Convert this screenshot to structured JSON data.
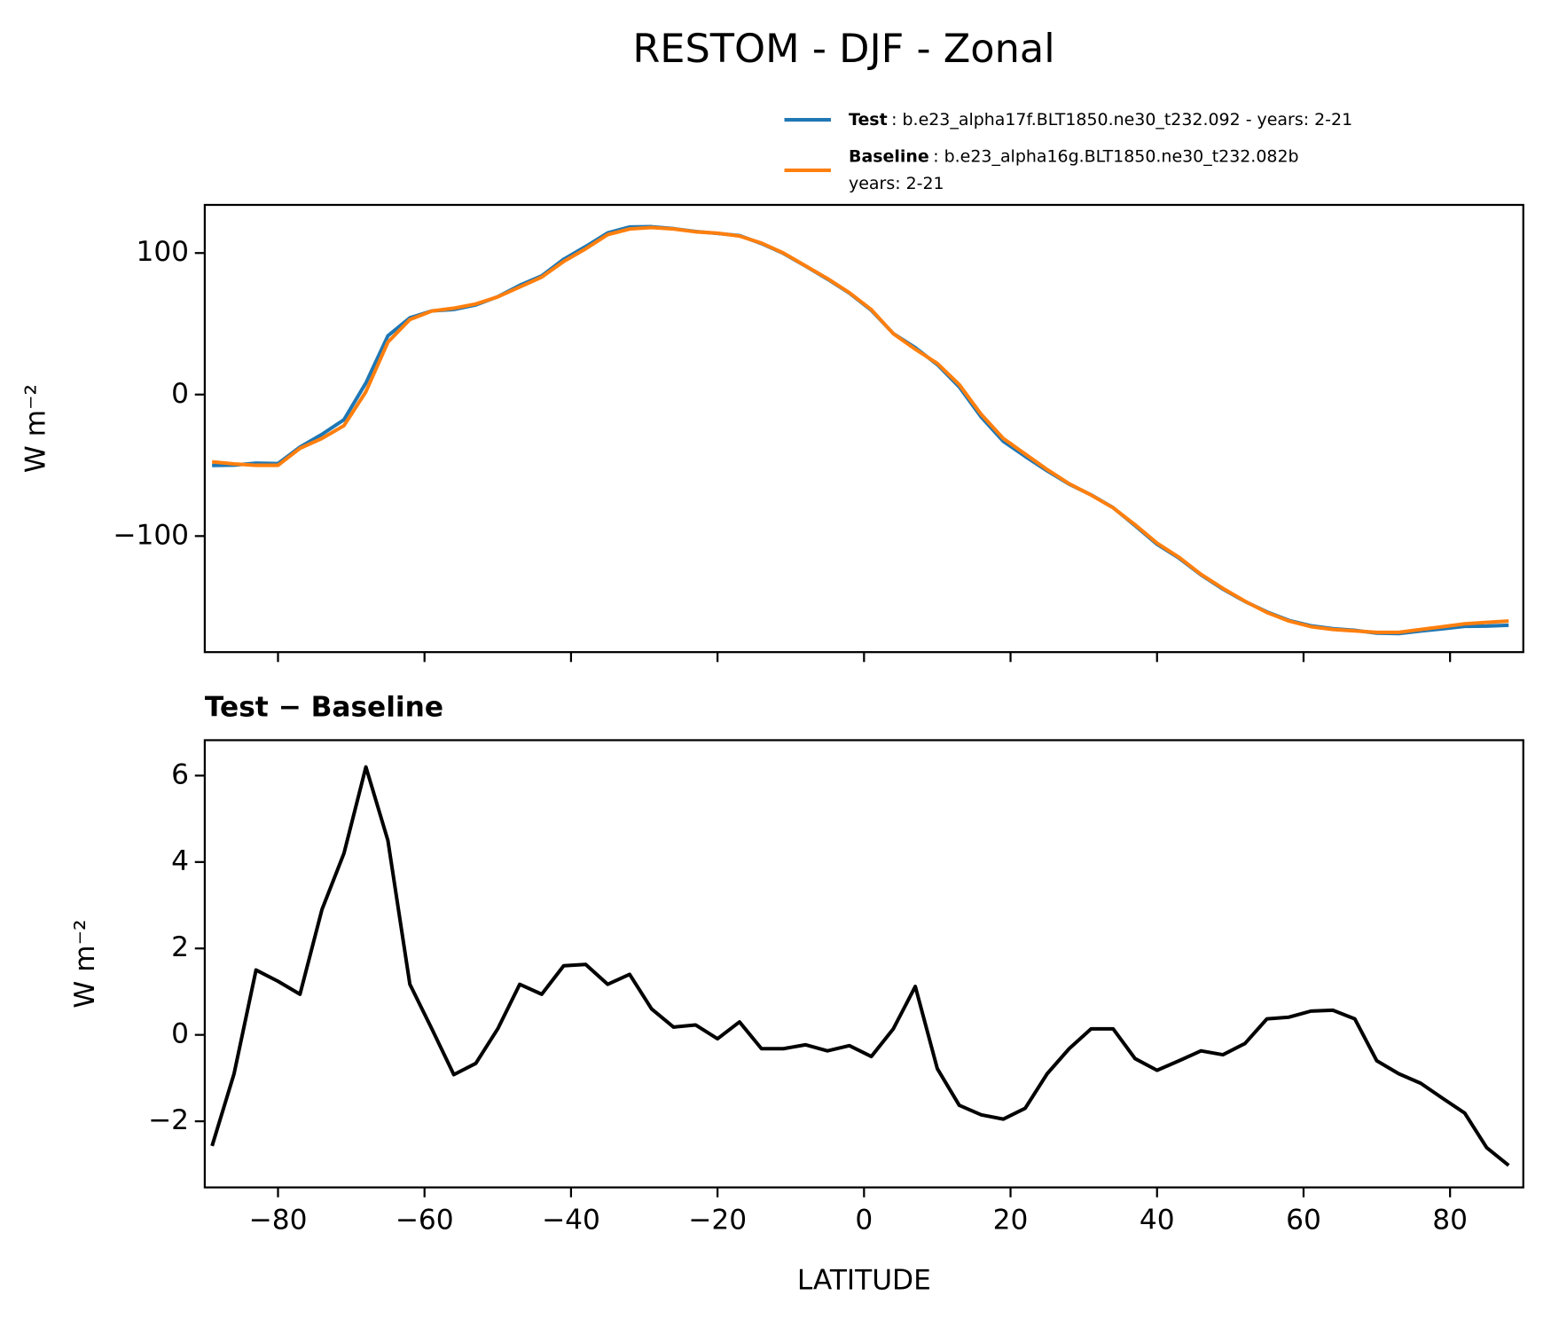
{
  "chart_data": [
    {
      "type": "line",
      "title": "RESTOM - DJF - Zonal",
      "ylabel": "W m⁻²",
      "x": [
        -89,
        -86,
        -83,
        -80,
        -77,
        -74,
        -71,
        -68,
        -65,
        -62,
        -59,
        -56,
        -53,
        -50,
        -47,
        -44,
        -41,
        -38,
        -35,
        -32,
        -29,
        -26,
        -23,
        -20,
        -17,
        -14,
        -11,
        -8,
        -5,
        -2,
        1,
        4,
        7,
        10,
        13,
        16,
        19,
        22,
        25,
        28,
        31,
        34,
        37,
        40,
        43,
        46,
        49,
        52,
        55,
        58,
        61,
        64,
        67,
        70,
        73,
        76,
        79,
        82,
        85,
        88
      ],
      "series": [
        {
          "name": "Test",
          "label": [
            ": b.e23_alpha17f.BLT1850.ne30_t232.092 - years: 2-21"
          ],
          "color": "#1f77b4",
          "values": [
            -50.1,
            -49.9,
            -48.5,
            -48.8,
            -37.1,
            -28.1,
            -17.8,
            8.2,
            41.5,
            54.2,
            59.1,
            60.1,
            63.3,
            69.1,
            77.2,
            83.9,
            95.6,
            104.6,
            114.2,
            118.4,
            118.6,
            117.2,
            115.2,
            113.9,
            112.3,
            106.7,
            99.7,
            90.8,
            81.6,
            71.7,
            59.5,
            43.1,
            33.1,
            21.2,
            5.4,
            -15.9,
            -33,
            -43.7,
            -53.9,
            -63.3,
            -70.9,
            -79.9,
            -92.6,
            -105.8,
            -115.6,
            -127.4,
            -137.5,
            -146.2,
            -153.6,
            -159.6,
            -163.4,
            -165.4,
            -166.6,
            -168.6,
            -168.9,
            -167.1,
            -165.5,
            -163.8,
            -163.6,
            -163
          ]
        },
        {
          "name": "Baseline",
          "label": [
            ": b.e23_alpha16g.BLT1850.ne30_t232.082b",
            "years: 2-21"
          ],
          "color": "#ff7f0e",
          "values": [
            -47.5,
            -49,
            -50,
            -50,
            -38,
            -31,
            -22,
            2,
            37,
            53,
            59,
            61,
            64,
            69,
            76,
            83,
            94,
            103,
            113,
            117,
            118,
            117,
            115,
            114,
            112,
            107,
            100,
            91,
            82,
            72,
            60,
            43,
            32,
            22,
            7,
            -14,
            -31,
            -42,
            -53,
            -63,
            -71,
            -80,
            -92,
            -105,
            -115,
            -127,
            -137,
            -146,
            -154,
            -160,
            -164,
            -166,
            -167,
            -168,
            -168,
            -166,
            -164,
            -162,
            -161,
            -160
          ]
        }
      ],
      "xlim": [
        -90,
        90
      ],
      "xticks": [
        -80,
        -60,
        -40,
        -20,
        0,
        20,
        40,
        60,
        80
      ],
      "show_xticklabels": false,
      "ylim": [
        -182,
        134
      ],
      "yticks": [
        {
          "value": -100,
          "label": "−100"
        },
        0,
        100
      ]
    },
    {
      "type": "line",
      "title": "Test − Baseline",
      "ylabel": "W m⁻²",
      "xlabel": "LATITUDE",
      "x": [
        -89,
        -86,
        -83,
        -80,
        -77,
        -74,
        -71,
        -68,
        -65,
        -62,
        -59,
        -56,
        -53,
        -50,
        -47,
        -44,
        -41,
        -38,
        -35,
        -32,
        -29,
        -26,
        -23,
        -20,
        -17,
        -14,
        -11,
        -8,
        -5,
        -2,
        1,
        4,
        7,
        10,
        13,
        16,
        19,
        22,
        25,
        28,
        31,
        34,
        37,
        40,
        43,
        46,
        49,
        52,
        55,
        58,
        61,
        64,
        67,
        70,
        73,
        76,
        79,
        82,
        85,
        88
      ],
      "series": [
        {
          "color": "#000000",
          "values": [
            -2.57,
            -0.9,
            1.5,
            1.24,
            0.94,
            2.9,
            4.2,
            6.2,
            4.5,
            1.17,
            0.14,
            -0.92,
            -0.66,
            0.14,
            1.17,
            0.94,
            1.6,
            1.63,
            1.17,
            1.4,
            0.6,
            0.18,
            0.23,
            -0.09,
            0.3,
            -0.32,
            -0.32,
            -0.23,
            -0.37,
            -0.25,
            -0.5,
            0.14,
            1.12,
            -0.78,
            -1.63,
            -1.85,
            -1.95,
            -1.7,
            -0.9,
            -0.32,
            0.14,
            0.14,
            -0.55,
            -0.82,
            -0.6,
            -0.37,
            -0.46,
            -0.2,
            0.37,
            0.41,
            0.55,
            0.57,
            0.37,
            -0.6,
            -0.9,
            -1.12,
            -1.47,
            -1.81,
            -2.61,
            -3.02
          ]
        }
      ],
      "xlim": [
        -90,
        90
      ],
      "xticks": [
        {
          "value": -80,
          "label": "−80"
        },
        {
          "value": -60,
          "label": "−60"
        },
        {
          "value": -40,
          "label": "−40"
        },
        {
          "value": -20,
          "label": "−20"
        },
        0,
        20,
        40,
        60,
        80
      ],
      "show_xticklabels": true,
      "ylim": [
        -3.53,
        6.82
      ],
      "yticks": [
        {
          "value": -2,
          "label": "−2"
        },
        0,
        2,
        4,
        6
      ]
    }
  ]
}
